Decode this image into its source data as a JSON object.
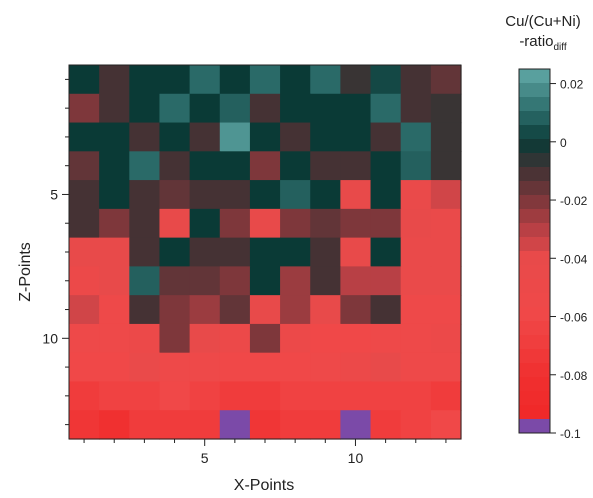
{
  "chart_data": {
    "type": "heatmap",
    "title": "",
    "xlabel": "X-Points",
    "ylabel": "Z-Points",
    "x_range": [
      1,
      13
    ],
    "y_range": [
      1,
      13
    ],
    "x_ticks": [
      5,
      10
    ],
    "y_ticks": [
      5,
      10
    ],
    "y_inverted": true,
    "colorbar": {
      "title_line1": "Cu/(Cu+Ni)",
      "title_line2_prefix": "-ratio",
      "title_line2_subscript": "diff",
      "range": [
        -0.1,
        0.025
      ],
      "ticks": [
        {
          "value": 0.02,
          "label": "0.02"
        },
        {
          "value": 0,
          "label": "0"
        },
        {
          "value": -0.02,
          "label": "-0.02"
        },
        {
          "value": -0.04,
          "label": "-0.04"
        },
        {
          "value": -0.06,
          "label": "-0.06"
        },
        {
          "value": -0.08,
          "label": "-0.08"
        },
        {
          "value": -0.1,
          "label": "-0.1"
        }
      ]
    },
    "colorscale": [
      {
        "v": -0.1,
        "color": "#7b4aa8"
      },
      {
        "v": -0.095,
        "color": "#7b4aa8"
      },
      {
        "v": -0.0949,
        "color": "#f02828"
      },
      {
        "v": -0.08,
        "color": "#f03030"
      },
      {
        "v": -0.06,
        "color": "#f04848"
      },
      {
        "v": -0.04,
        "color": "#e84a4a"
      },
      {
        "v": -0.03,
        "color": "#b84045"
      },
      {
        "v": -0.02,
        "color": "#7e373b"
      },
      {
        "v": -0.01,
        "color": "#453234"
      },
      {
        "v": 0,
        "color": "#0a3a36"
      },
      {
        "v": 0.01,
        "color": "#2a6a68"
      },
      {
        "v": 0.025,
        "color": "#62aaa8"
      }
    ],
    "values": [
      [
        0.0,
        -0.01,
        0.0,
        0.0,
        0.01,
        0.0,
        0.01,
        0.0,
        0.01,
        -0.008,
        0.003,
        -0.01,
        -0.015
      ],
      [
        -0.02,
        -0.01,
        0.0,
        0.01,
        0.0,
        0.008,
        -0.01,
        0.0,
        0.0,
        0.0,
        0.01,
        -0.01,
        -0.008
      ],
      [
        0.0,
        0.0,
        -0.01,
        0.0,
        -0.01,
        0.02,
        0.0,
        -0.01,
        0.0,
        0.0,
        -0.01,
        0.01,
        -0.008
      ],
      [
        -0.015,
        0.0,
        0.01,
        -0.01,
        0.0,
        0.0,
        -0.02,
        0.0,
        -0.01,
        -0.01,
        0.0,
        0.008,
        -0.008
      ],
      [
        -0.01,
        0.0,
        -0.01,
        -0.015,
        -0.01,
        -0.01,
        0.0,
        0.008,
        0.0,
        -0.04,
        0.0,
        -0.045,
        -0.035
      ],
      [
        -0.01,
        -0.02,
        -0.01,
        -0.04,
        0.0,
        -0.02,
        -0.04,
        -0.02,
        -0.015,
        -0.02,
        -0.02,
        -0.04,
        -0.045
      ],
      [
        -0.04,
        -0.04,
        -0.01,
        0.0,
        -0.01,
        -0.01,
        0.0,
        0.0,
        -0.01,
        -0.04,
        0.0,
        -0.045,
        -0.045
      ],
      [
        -0.05,
        -0.04,
        0.008,
        -0.015,
        -0.015,
        -0.02,
        0.0,
        -0.025,
        -0.01,
        -0.03,
        -0.03,
        -0.045,
        -0.045
      ],
      [
        -0.035,
        -0.055,
        -0.01,
        -0.02,
        -0.025,
        -0.015,
        -0.04,
        -0.025,
        -0.04,
        -0.02,
        -0.01,
        -0.055,
        -0.055
      ],
      [
        -0.055,
        -0.055,
        -0.05,
        -0.02,
        -0.04,
        -0.05,
        -0.02,
        -0.05,
        -0.06,
        -0.06,
        -0.055,
        -0.055,
        -0.05
      ],
      [
        -0.06,
        -0.06,
        -0.045,
        -0.055,
        -0.055,
        -0.06,
        -0.06,
        -0.06,
        -0.055,
        -0.05,
        -0.04,
        -0.055,
        -0.055
      ],
      [
        -0.07,
        -0.065,
        -0.065,
        -0.06,
        -0.065,
        -0.07,
        -0.07,
        -0.065,
        -0.065,
        -0.065,
        -0.065,
        -0.065,
        -0.07
      ],
      [
        -0.075,
        -0.08,
        -0.07,
        -0.07,
        -0.07,
        -0.1,
        -0.075,
        -0.07,
        -0.07,
        -0.1,
        -0.07,
        -0.065,
        -0.06
      ]
    ]
  }
}
